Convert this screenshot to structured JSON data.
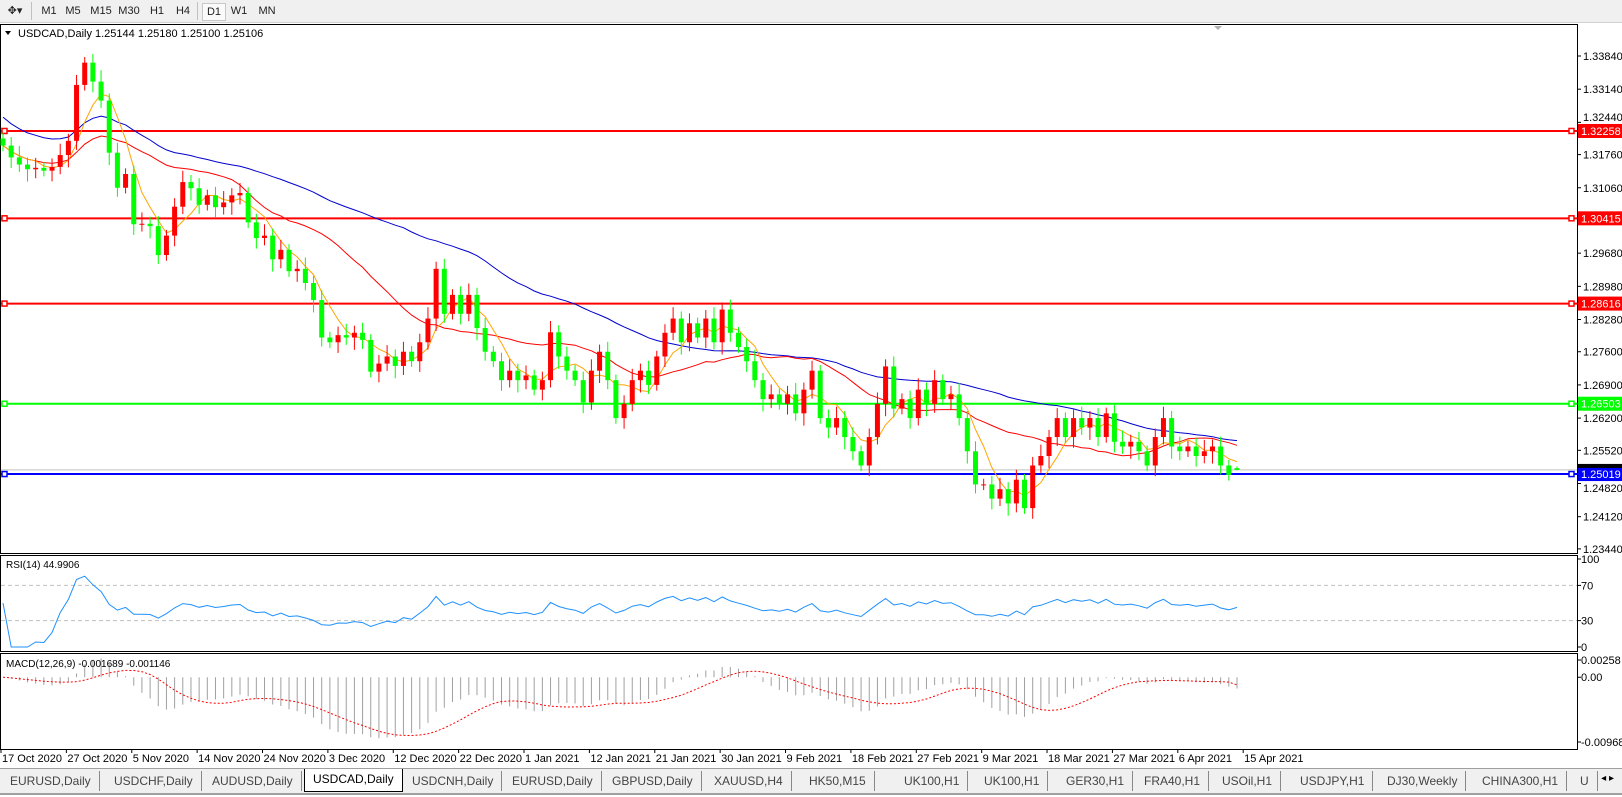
{
  "toolbar": {
    "timeframes": [
      "M1",
      "M5",
      "M15",
      "M30",
      "H1",
      "H4",
      "D1",
      "W1",
      "MN"
    ],
    "active_timeframe": "D1"
  },
  "main": {
    "header": "USDCAD,Daily  1.25144 1.25180 1.25100 1.25106",
    "rsi_label": "RSI(14) 44.9906",
    "macd_label": "MACD(12,26,9) -0.001689 -0.001146"
  },
  "chart_data": {
    "type": "candlestick",
    "symbol": "USDCAD",
    "timeframe": "Daily",
    "last_bar": {
      "open": 1.25144,
      "high": 1.2518,
      "low": 1.251,
      "close": 1.25106
    },
    "colors": {
      "up": "#ff0000",
      "down": "#00ff00",
      "ma_fast": "#ffa500",
      "ma_mid": "#ff0000",
      "ma_slow": "#0000cd",
      "rsi": "#1e90ff",
      "macd_hist": "#a0a0a0",
      "macd_signal": "#ff0000"
    },
    "close": [
      1.3195,
      1.317,
      1.3155,
      1.3145,
      1.3148,
      1.3142,
      1.315,
      1.3175,
      1.3205,
      1.3323,
      1.337,
      1.333,
      1.329,
      1.318,
      1.3106,
      1.3135,
      1.3029,
      1.303,
      1.3025,
      1.2964,
      1.3005,
      1.3066,
      1.3118,
      1.3105,
      1.307,
      1.309,
      1.3065,
      1.3075,
      1.309,
      1.3095,
      1.3033,
      1.3,
      1.3005,
      1.2955,
      1.2975,
      1.293,
      1.2935,
      1.2905,
      1.2869,
      1.279,
      1.278,
      1.2795,
      1.279,
      1.28,
      1.2785,
      1.2718,
      1.2735,
      1.275,
      1.273,
      1.276,
      1.274,
      1.278,
      1.283,
      1.2935,
      1.284,
      1.288,
      1.284,
      1.288,
      1.281,
      1.276,
      1.274,
      1.27,
      1.272,
      1.27,
      1.271,
      1.268,
      1.27,
      1.2801,
      1.275,
      1.272,
      1.27,
      1.2653,
      1.272,
      1.276,
      1.27,
      1.262,
      1.265,
      1.27,
      1.272,
      1.269,
      1.275,
      1.28,
      1.283,
      1.278,
      1.282,
      1.279,
      1.283,
      1.278,
      1.2849,
      1.28,
      1.277,
      1.274,
      1.27,
      1.266,
      1.267,
      1.265,
      1.267,
      1.263,
      1.268,
      1.272,
      1.262,
      1.26,
      1.262,
      1.258,
      1.255,
      1.252,
      1.258,
      1.265,
      1.2729,
      1.264,
      1.266,
      1.262,
      1.268,
      1.265,
      1.27,
      1.266,
      1.267,
      1.262,
      1.255,
      1.248,
      1.248,
      1.245,
      1.247,
      1.244,
      1.249,
      1.243,
      1.252,
      1.254,
      1.258,
      1.262,
      1.258,
      1.262,
      1.26,
      1.262,
      1.258,
      1.263,
      1.257,
      1.256,
      1.257,
      1.255,
      1.252,
      1.258,
      1.262,
      1.256,
      1.255,
      1.256,
      1.254,
      1.255,
      1.256,
      1.252,
      1.25,
      1.25106
    ],
    "price_axis": {
      "min": 1.2344,
      "max": 1.3384,
      "ticks": [
        "1.33840",
        "1.33140",
        "1.32440",
        "1.31760",
        "1.31060",
        "1.29680",
        "1.28980",
        "1.28280",
        "1.27600",
        "1.26900",
        "1.26200",
        "1.25520",
        "1.24820",
        "1.24120",
        "1.23440"
      ]
    },
    "horizontal_lines": [
      {
        "price": 1.32258,
        "label": "1.32258",
        "color": "#ff0000"
      },
      {
        "price": 1.30415,
        "label": "1.30415",
        "color": "#ff0000"
      },
      {
        "price": 1.28616,
        "label": "1.28616",
        "color": "#ff0000"
      },
      {
        "price": 1.26503,
        "label": "1.26503",
        "color": "#00ff00"
      },
      {
        "price": 1.25019,
        "label": "1.25019",
        "color": "#0000ff"
      }
    ],
    "current_price": 1.25106,
    "x_labels": [
      "17 Oct 2020",
      "27 Oct 2020",
      "5 Nov 2020",
      "14 Nov 2020",
      "24 Nov 2020",
      "3 Dec 2020",
      "12 Dec 2020",
      "22 Dec 2020",
      "1 Jan 2021",
      "12 Jan 2021",
      "21 Jan 2021",
      "30 Jan 2021",
      "9 Feb 2021",
      "18 Feb 2021",
      "27 Feb 2021",
      "9 Mar 2021",
      "18 Mar 2021",
      "27 Mar 2021",
      "6 Apr 2021",
      "15 Apr 2021"
    ],
    "rsi": {
      "period": 14,
      "value": 44.9906,
      "axis": [
        "100",
        "70",
        "30",
        "0"
      ],
      "levels": [
        70,
        30
      ]
    },
    "macd": {
      "fast": 12,
      "slow": 26,
      "signal": 9,
      "main": -0.001689,
      "signal_value": -0.001146,
      "axis": [
        "0.00258",
        "0.00",
        "-0.009687"
      ],
      "max": 0.00258,
      "min": -0.009687
    }
  },
  "tabs": {
    "items": [
      "EURUSD,Daily",
      "USDCHF,Daily",
      "AUDUSD,Daily",
      "USDCAD,Daily",
      "USDCNH,Daily",
      "EURUSD,Daily",
      "GBPUSD,Daily",
      "XAUUSD,H4",
      "HK50,M15",
      "UK100,H1",
      "UK100,H1",
      "GER30,H1",
      "FRA40,H1",
      "USOil,H1",
      "USDJPY,H1",
      "DJ30,Weekly",
      "CHINA300,H1",
      "U"
    ],
    "active": "USDCAD,Daily",
    "scroll_icons": "scroll-left-right-arrows"
  }
}
